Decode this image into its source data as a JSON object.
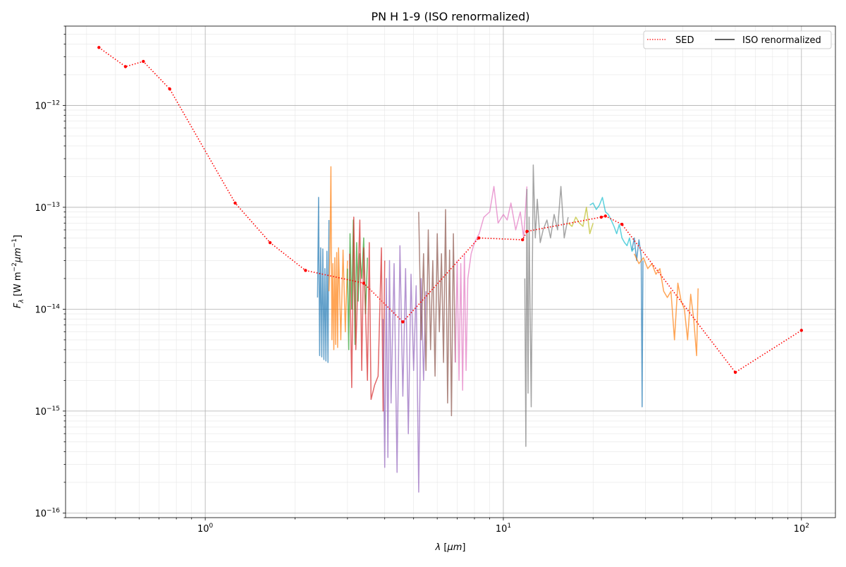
{
  "chart_data": {
    "type": "line",
    "title": "PN H 1-9 (ISO renormalized)",
    "xlabel": "λ [μm]",
    "ylabel": "F_λ [W m^-2 μm^-1]",
    "xscale": "log",
    "yscale": "log",
    "xlim": [
      0.34,
      130
    ],
    "ylim": [
      9e-17,
      6e-12
    ],
    "x_ticks": [
      {
        "value": 1,
        "base": "10",
        "exp": "0"
      },
      {
        "value": 10,
        "base": "10",
        "exp": "1"
      },
      {
        "value": 100,
        "base": "10",
        "exp": "2"
      }
    ],
    "y_ticks": [
      {
        "value": 1e-16,
        "base": "10",
        "exp": "−16"
      },
      {
        "value": 1e-15,
        "base": "10",
        "exp": "−15"
      },
      {
        "value": 1e-14,
        "base": "10",
        "exp": "−14"
      },
      {
        "value": 1e-13,
        "base": "10",
        "exp": "−13"
      },
      {
        "value": 1e-12,
        "base": "10",
        "exp": "−12"
      }
    ],
    "grid": "major and minor",
    "legend": {
      "placement": "top-right",
      "entries": [
        {
          "label": "SED",
          "style": "dotted",
          "color": "#ff0000"
        },
        {
          "label": "ISO renormalized",
          "style": "solid",
          "color": "#000000"
        }
      ]
    },
    "sed": {
      "color": "#ff0000",
      "x": [
        0.44,
        0.54,
        0.62,
        0.76,
        1.26,
        1.65,
        2.17,
        3.4,
        4.6,
        8.28,
        11.6,
        12,
        21.3,
        22,
        25,
        60,
        100
      ],
      "y": [
        3.7e-12,
        2.4e-12,
        2.7e-12,
        1.45e-12,
        1.1e-13,
        4.5e-14,
        2.4e-14,
        1.8e-14,
        7.5e-15,
        5e-14,
        4.8e-14,
        5.8e-14,
        8e-14,
        8.2e-14,
        6.8e-14,
        2.4e-15,
        6.2e-15
      ]
    },
    "iso_segments": [
      {
        "color": "#1f77b4",
        "x": [
          2.38,
          2.4,
          2.42,
          2.44,
          2.46,
          2.48,
          2.5,
          2.52,
          2.54,
          2.56,
          2.58,
          2.6
        ],
        "y": [
          1.3e-14,
          1.25e-13,
          3.5e-15,
          4e-14,
          3.4e-15,
          3.9e-14,
          3.2e-15,
          2.5e-14,
          3.1e-15,
          3.7e-14,
          3e-15,
          7.5e-14
        ]
      },
      {
        "color": "#ff7f0e",
        "x": [
          2.6,
          2.62,
          2.64,
          2.66,
          2.68,
          2.7,
          2.72,
          2.74,
          2.76,
          2.78,
          2.8,
          2.85,
          2.9,
          2.95,
          3.0
        ],
        "y": [
          1.5e-14,
          3.5e-14,
          2.5e-13,
          5e-15,
          2.8e-14,
          4e-15,
          3.2e-14,
          4.5e-15,
          3.6e-14,
          4.2e-15,
          4e-14,
          5e-15,
          3.8e-14,
          6e-15,
          3e-14
        ]
      },
      {
        "color": "#2ca02c",
        "x": [
          3.0,
          3.03,
          3.06,
          3.1,
          3.14,
          3.18,
          3.22,
          3.26,
          3.3,
          3.35,
          3.4,
          3.45,
          3.5
        ],
        "y": [
          2.5e-14,
          4e-15,
          5.5e-14,
          1e-14,
          7.5e-14,
          4.5e-15,
          4.5e-14,
          1.2e-14,
          3.5e-14,
          2e-14,
          5e-14,
          9e-15,
          3.2e-14
        ]
      },
      {
        "color": "#d62728",
        "x": [
          3.05,
          3.1,
          3.15,
          3.2,
          3.3,
          3.35,
          3.4,
          3.5,
          3.55,
          3.6,
          3.7,
          3.8,
          3.9,
          3.95,
          4.0
        ],
        "y": [
          3.5e-14,
          1.7e-15,
          8e-14,
          4e-15,
          7.5e-14,
          2.5e-15,
          4e-14,
          2e-15,
          4.5e-14,
          1.3e-15,
          1.8e-15,
          2.2e-15,
          4e-14,
          1e-15,
          3e-14
        ]
      },
      {
        "color": "#9467bd",
        "x": [
          3.95,
          4.0,
          4.05,
          4.1,
          4.15,
          4.2,
          4.3,
          4.4,
          4.5,
          4.6,
          4.7,
          4.8,
          4.9,
          5.0,
          5.1,
          5.2,
          5.3,
          5.4,
          5.5
        ],
        "y": [
          8e-15,
          2.8e-16,
          2e-14,
          3.5e-16,
          3e-14,
          1.2e-15,
          2.8e-14,
          2.5e-16,
          4.2e-14,
          1.4e-15,
          2.5e-14,
          6e-16,
          2.2e-14,
          2.5e-15,
          1.7e-14,
          1.6e-16,
          2e-14,
          2e-15,
          1.5e-14
        ]
      },
      {
        "color": "#8c564b",
        "x": [
          5.2,
          5.3,
          5.4,
          5.5,
          5.6,
          5.7,
          5.8,
          5.9,
          6.0,
          6.1,
          6.2,
          6.3,
          6.4,
          6.5,
          6.6,
          6.7,
          6.8,
          6.9
        ],
        "y": [
          9e-14,
          5e-15,
          3.5e-14,
          2.5e-15,
          6e-14,
          4e-15,
          3e-14,
          2.2e-15,
          5.5e-14,
          6e-15,
          3.5e-14,
          3e-15,
          9.5e-14,
          1.2e-15,
          3.8e-14,
          9e-16,
          5.5e-14,
          3e-15
        ]
      },
      {
        "color": "#e377c2",
        "x": [
          6.9,
          7.0,
          7.1,
          7.2,
          7.3,
          7.4,
          7.5,
          7.6,
          7.8,
          8.0,
          8.3,
          8.6,
          9.0,
          9.3,
          9.6,
          10.0,
          10.3,
          10.6,
          11.0,
          11.4,
          11.7,
          12.0
        ],
        "y": [
          3e-15,
          3e-14,
          2e-15,
          2.8e-14,
          1.6e-15,
          3.5e-14,
          2.5e-15,
          2e-14,
          3.5e-14,
          4.5e-14,
          5.5e-14,
          8e-14,
          9e-14,
          1.6e-13,
          7e-14,
          8.5e-14,
          7.5e-14,
          1.1e-13,
          6e-14,
          9e-14,
          5e-14,
          1.6e-13
        ]
      },
      {
        "color": "#7f7f7f",
        "x": [
          11.8,
          11.9,
          12.0,
          12.1,
          12.2,
          12.4,
          12.6,
          12.8,
          13.0,
          13.3,
          13.6,
          14.0,
          14.4,
          14.8,
          15.2,
          15.6,
          16.0,
          16.5
        ],
        "y": [
          2e-14,
          4.5e-16,
          1.5e-13,
          1.5e-15,
          8e-14,
          1.1e-15,
          2.6e-13,
          5e-14,
          1.2e-13,
          4.5e-14,
          6e-14,
          7.5e-14,
          5e-14,
          8.5e-14,
          6e-14,
          1.6e-13,
          5e-14,
          8e-14
        ]
      },
      {
        "color": "#bcbd22",
        "x": [
          16.5,
          17.0,
          17.5,
          18.0,
          18.5,
          19.0,
          19.5,
          20.0
        ],
        "y": [
          7e-14,
          6.5e-14,
          8e-14,
          7e-14,
          6.5e-14,
          1e-13,
          5.5e-14,
          7e-14
        ]
      },
      {
        "color": "#17becf",
        "x": [
          19.5,
          20.0,
          20.5,
          21.0,
          21.5,
          22.0,
          22.5,
          23.0,
          23.5,
          24.0,
          24.5,
          25.0,
          25.5,
          26.0,
          26.5,
          27.0,
          27.5
        ],
        "y": [
          1.05e-13,
          1.1e-13,
          9.5e-14,
          1.05e-13,
          1.25e-13,
          9e-14,
          8.5e-14,
          7.5e-14,
          6.5e-14,
          5.5e-14,
          6.8e-14,
          5e-14,
          4.5e-14,
          4.2e-14,
          5e-14,
          3.7e-14,
          4e-14
        ]
      },
      {
        "color": "#1f77b4",
        "x": [
          27.0,
          27.5,
          28.0,
          28.5,
          29.0,
          29.2,
          29.4
        ],
        "y": [
          3.8e-14,
          5e-14,
          3e-14,
          4.8e-14,
          3.3e-14,
          1.1e-15,
          3e-14
        ]
      },
      {
        "color": "#ff7f0e",
        "x": [
          27.5,
          28.5,
          29.5,
          30.5,
          31.5,
          32.5,
          33.5,
          34.5,
          35.5,
          36.5,
          37.5,
          38.5,
          39.5,
          40.5,
          41.5,
          42.5,
          43.5,
          44.5,
          45.0
        ],
        "y": [
          3.5e-14,
          2.8e-14,
          3.2e-14,
          2.5e-14,
          2.8e-14,
          2.2e-14,
          2.5e-14,
          1.5e-14,
          1.3e-14,
          1.5e-14,
          5e-15,
          1.8e-14,
          1.2e-14,
          1e-14,
          5e-15,
          1.4e-14,
          8e-15,
          3.5e-15,
          1.6e-14
        ]
      }
    ]
  }
}
